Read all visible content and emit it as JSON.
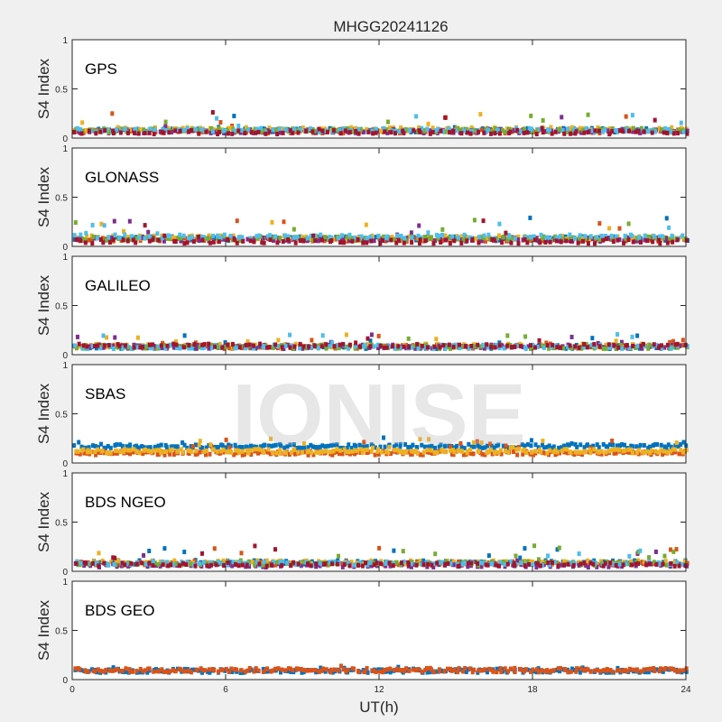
{
  "figure": {
    "title": "MHGG20241126",
    "xlabel": "UT(h)",
    "watermark": "IONISE"
  },
  "colors": {
    "palette": [
      "#0072BD",
      "#D95319",
      "#EDB120",
      "#7E2F8E",
      "#77AC30",
      "#4DBEEE",
      "#A2142F"
    ],
    "axes_bg": "#ffffff",
    "figure_bg": "#f0f0f0"
  },
  "chart_data": [
    {
      "type": "scatter",
      "label": "GPS",
      "ylabel": "S4 Index",
      "xlim": [
        0,
        24
      ],
      "ylim": [
        0,
        1
      ],
      "x_ticks": [
        0,
        6,
        12,
        18,
        24
      ],
      "y_ticks": [
        0,
        0.5,
        1
      ],
      "show_x_ticklabels": false,
      "series_count": 7,
      "series_mean_s4": [
        0.08,
        0.07,
        0.09,
        0.07,
        0.08,
        0.08,
        0.06
      ],
      "s4_typical_max": 0.25
    },
    {
      "type": "scatter",
      "label": "GLONASS",
      "ylabel": "S4 Index",
      "xlim": [
        0,
        24
      ],
      "ylim": [
        0,
        1
      ],
      "x_ticks": [
        0,
        6,
        12,
        18,
        24
      ],
      "y_ticks": [
        0,
        0.5,
        1
      ],
      "show_x_ticklabels": false,
      "series_count": 7,
      "series_mean_s4": [
        0.08,
        0.07,
        0.09,
        0.07,
        0.08,
        0.1,
        0.05
      ],
      "s4_typical_max": 0.28
    },
    {
      "type": "scatter",
      "label": "GALILEO",
      "ylabel": "S4 Index",
      "xlim": [
        0,
        24
      ],
      "ylim": [
        0,
        1
      ],
      "x_ticks": [
        0,
        6,
        12,
        18,
        24
      ],
      "y_ticks": [
        0,
        0.5,
        1
      ],
      "show_x_ticklabels": false,
      "series_count": 7,
      "series_mean_s4": [
        0.08,
        0.08,
        0.09,
        0.08,
        0.08,
        0.08,
        0.09
      ],
      "s4_typical_max": 0.2
    },
    {
      "type": "scatter",
      "label": "SBAS",
      "ylabel": "S4 Index",
      "xlim": [
        0,
        24
      ],
      "ylim": [
        0,
        1
      ],
      "x_ticks": [
        0,
        6,
        12,
        18,
        24
      ],
      "y_ticks": [
        0,
        0.5,
        1
      ],
      "show_x_ticklabels": false,
      "series_count": 3,
      "series_mean_s4": [
        0.17,
        0.1,
        0.12
      ],
      "s4_typical_max": 0.24
    },
    {
      "type": "scatter",
      "label": "BDS NGEO",
      "ylabel": "S4 Index",
      "xlim": [
        0,
        24
      ],
      "ylim": [
        0,
        1
      ],
      "x_ticks": [
        0,
        6,
        12,
        18,
        24
      ],
      "y_ticks": [
        0,
        0.5,
        1
      ],
      "show_x_ticklabels": false,
      "series_count": 7,
      "series_mean_s4": [
        0.09,
        0.08,
        0.09,
        0.06,
        0.08,
        0.08,
        0.07
      ],
      "s4_typical_max": 0.25
    },
    {
      "type": "scatter",
      "label": "BDS GEO",
      "ylabel": "S4 Index",
      "xlim": [
        0,
        24
      ],
      "ylim": [
        0,
        1
      ],
      "x_ticks": [
        0,
        6,
        12,
        18,
        24
      ],
      "y_ticks": [
        0,
        0.5,
        1
      ],
      "show_x_ticklabels": true,
      "series_count": 2,
      "series_mean_s4": [
        0.09,
        0.095
      ],
      "s4_typical_max": 0.13
    }
  ]
}
